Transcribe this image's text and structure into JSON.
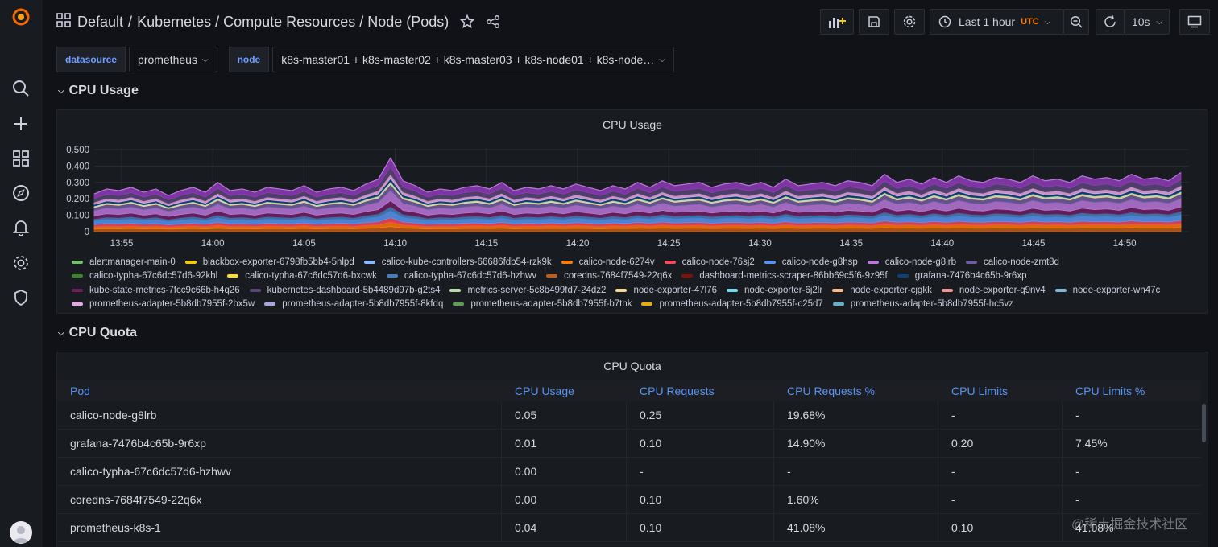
{
  "breadcrumb": {
    "folder": "Default",
    "sep": "/",
    "dashboard": "Kubernetes / Compute Resources / Node (Pods)"
  },
  "toolbar": {
    "time_range": "Last 1 hour",
    "timezone": "UTC",
    "refresh_interval": "10s"
  },
  "variables": [
    {
      "label": "datasource",
      "value": "prometheus"
    },
    {
      "label": "node",
      "value": "k8s-master01 + k8s-master02 + k8s-master03 + k8s-node01 + k8s-node…"
    }
  ],
  "rows": [
    {
      "title": "CPU Usage"
    },
    {
      "title": "CPU Quota"
    }
  ],
  "colors": {
    "accent": "#5794f2",
    "background": "#111217",
    "panel": "#181b1f"
  },
  "chart_data": {
    "type": "area",
    "title": "CPU Usage",
    "ylabel": "",
    "xlabel": "",
    "ylim": [
      0,
      0.5
    ],
    "yticks": [
      "0",
      "0.100",
      "0.200",
      "0.300",
      "0.400",
      "0.500"
    ],
    "xticks": [
      "13:55",
      "14:00",
      "14:05",
      "14:10",
      "14:15",
      "14:20",
      "14:25",
      "14:30",
      "14:35",
      "14:40",
      "14:45",
      "14:50"
    ],
    "stacked": true,
    "total_envelope": [
      0.23,
      0.26,
      0.25,
      0.27,
      0.24,
      0.26,
      0.22,
      0.25,
      0.27,
      0.24,
      0.3,
      0.25,
      0.26,
      0.24,
      0.27,
      0.26,
      0.25,
      0.28,
      0.24,
      0.26,
      0.27,
      0.25,
      0.29,
      0.26,
      0.27,
      0.25,
      0.28,
      0.24,
      0.26,
      0.25,
      0.27,
      0.28,
      0.26,
      0.3,
      0.25,
      0.27,
      0.26,
      0.28,
      0.26,
      0.29,
      0.27,
      0.25,
      0.28,
      0.26,
      0.3,
      0.27,
      0.31,
      0.28,
      0.29,
      0.3,
      0.27,
      0.29,
      0.3,
      0.28,
      0.3,
      0.27,
      0.32,
      0.28,
      0.29,
      0.3,
      0.28,
      0.31,
      0.3,
      0.28,
      0.35,
      0.3,
      0.32,
      0.29,
      0.33,
      0.3,
      0.34,
      0.31,
      0.3,
      0.33,
      0.32,
      0.3,
      0.34,
      0.31,
      0.32,
      0.3,
      0.34,
      0.32,
      0.33,
      0.31,
      0.35,
      0.32,
      0.33,
      0.31,
      0.36
    ],
    "total_spike": {
      "x": "14:10",
      "y": 0.45
    },
    "legend": [
      [
        {
          "name": "alertmanager-main-0",
          "color": "#73bf69"
        },
        {
          "name": "blackbox-exporter-6798fb5bb4-5nlpd",
          "color": "#f2cc0c"
        },
        {
          "name": "calico-kube-controllers-66686fdb54-rzk9k",
          "color": "#8ab8ff"
        },
        {
          "name": "calico-node-6274v",
          "color": "#ff780a"
        },
        {
          "name": "calico-node-76sj2",
          "color": "#f2495c"
        },
        {
          "name": "calico-node-g8hsp",
          "color": "#5794f2"
        },
        {
          "name": "calico-node-g8lrb",
          "color": "#b877d9"
        },
        {
          "name": "calico-node-zmt8d",
          "color": "#705da0"
        }
      ],
      [
        {
          "name": "calico-typha-67c6dc57d6-92khl",
          "color": "#37872d"
        },
        {
          "name": "calico-typha-67c6dc57d6-bxcwk",
          "color": "#fade2a"
        },
        {
          "name": "calico-typha-67c6dc57d6-hzhwv",
          "color": "#447ebc"
        },
        {
          "name": "coredns-7684f7549-22q6x",
          "color": "#c15c17"
        },
        {
          "name": "dashboard-metrics-scraper-86bb69c5f6-9z95f",
          "color": "#890f02"
        },
        {
          "name": "grafana-7476b4c65b-9r6xp",
          "color": "#0a437c"
        }
      ],
      [
        {
          "name": "kube-state-metrics-7fcc9c66b-h4q26",
          "color": "#6d1f62"
        },
        {
          "name": "kubernetes-dashboard-5b4489d97b-g2ts4",
          "color": "#584477"
        },
        {
          "name": "metrics-server-5c8b499fd7-24dz2",
          "color": "#b7dbab"
        },
        {
          "name": "node-exporter-47l76",
          "color": "#f4d598"
        },
        {
          "name": "node-exporter-6j2lr",
          "color": "#70dbed"
        },
        {
          "name": "node-exporter-cjgkk",
          "color": "#f9ba8f"
        },
        {
          "name": "node-exporter-q9nv4",
          "color": "#f29191"
        },
        {
          "name": "node-exporter-wn47c",
          "color": "#82b5d8"
        }
      ],
      [
        {
          "name": "prometheus-adapter-5b8db7955f-2bx5w",
          "color": "#e5a8e2"
        },
        {
          "name": "prometheus-adapter-5b8db7955f-8kfdq",
          "color": "#aea2e0"
        },
        {
          "name": "prometheus-adapter-5b8db7955f-b7tnk",
          "color": "#629e51"
        },
        {
          "name": "prometheus-adapter-5b8db7955f-c25d7",
          "color": "#e5ac0e"
        },
        {
          "name": "prometheus-adapter-5b8db7955f-hc5vz",
          "color": "#64b0c8"
        }
      ]
    ]
  },
  "quota_table": {
    "title": "CPU Quota",
    "columns": [
      "Pod",
      "CPU Usage",
      "CPU Requests",
      "CPU Requests %",
      "CPU Limits",
      "CPU Limits %"
    ],
    "rows": [
      [
        "calico-node-g8lrb",
        "0.05",
        "0.25",
        "19.68%",
        "-",
        "-"
      ],
      [
        "grafana-7476b4c65b-9r6xp",
        "0.01",
        "0.10",
        "14.90%",
        "0.20",
        "7.45%"
      ],
      [
        "calico-typha-67c6dc57d6-hzhwv",
        "0.00",
        "-",
        "-",
        "-",
        "-"
      ],
      [
        "coredns-7684f7549-22q6x",
        "0.00",
        "0.10",
        "1.60%",
        "-",
        "-"
      ],
      [
        "prometheus-k8s-1",
        "0.04",
        "0.10",
        "41.08%",
        "0.10",
        "41.08%"
      ]
    ]
  },
  "watermark": "@稀土掘金技术社区"
}
